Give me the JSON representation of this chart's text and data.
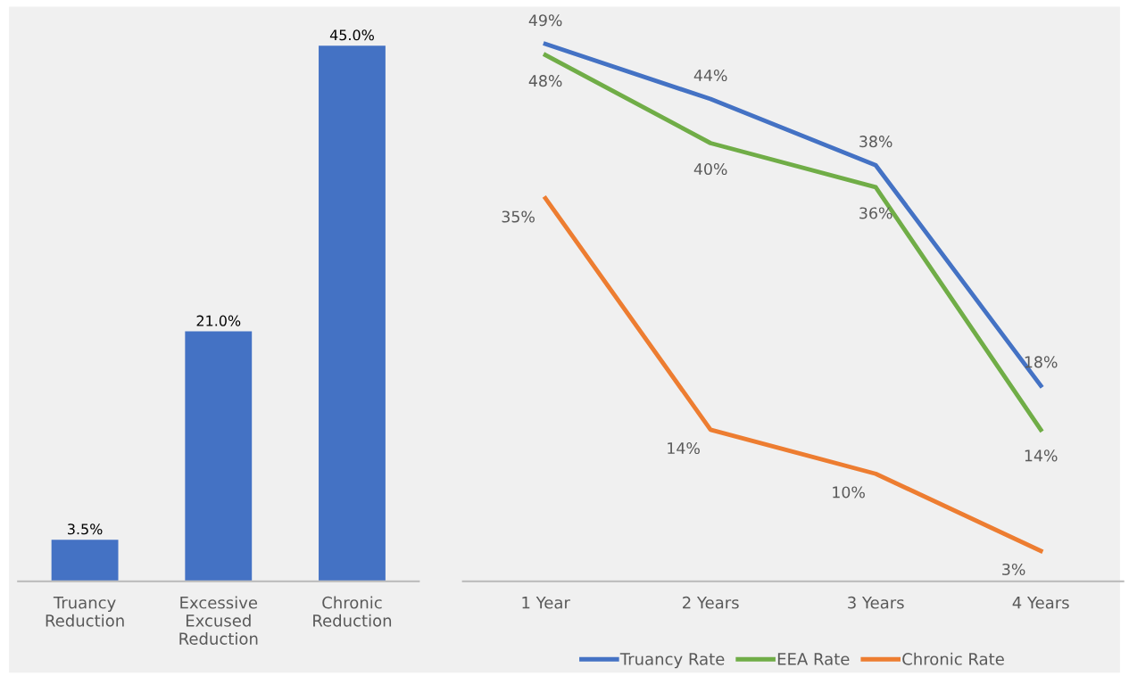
{
  "chart_data": [
    {
      "type": "bar",
      "categories": [
        "Truancy\nReduction",
        "Excessive\nExcused\nReduction",
        "Chronic\nReduction"
      ],
      "values": [
        3.5,
        21.0,
        45.0
      ],
      "value_labels": [
        "3.5%",
        "21.0%",
        "45.0%"
      ],
      "color": "#4472c4",
      "tick_labels": "x",
      "grid": false
    },
    {
      "type": "line",
      "categories": [
        "1 Year",
        "2 Years",
        "3 Years",
        "4 Years"
      ],
      "series": [
        {
          "name": "Truancy Rate",
          "color": "#4472c4",
          "values": [
            49,
            44,
            38,
            18
          ],
          "value_labels": [
            "49%",
            "44%",
            "38%",
            "18%"
          ]
        },
        {
          "name": "EEA Rate",
          "color": "#70ad47",
          "values": [
            48,
            40,
            36,
            14
          ],
          "value_labels": [
            "48%",
            "40%",
            "36%",
            "14%"
          ]
        },
        {
          "name": "Chronic Rate",
          "color": "#ed7d31",
          "values": [
            35,
            14,
            10,
            3
          ],
          "value_labels": [
            "35%",
            "14%",
            "10%",
            "3%"
          ]
        }
      ],
      "tick_labels": "x",
      "grid": false,
      "legend": "bottom",
      "marker": "none",
      "line_style": "solid"
    }
  ]
}
